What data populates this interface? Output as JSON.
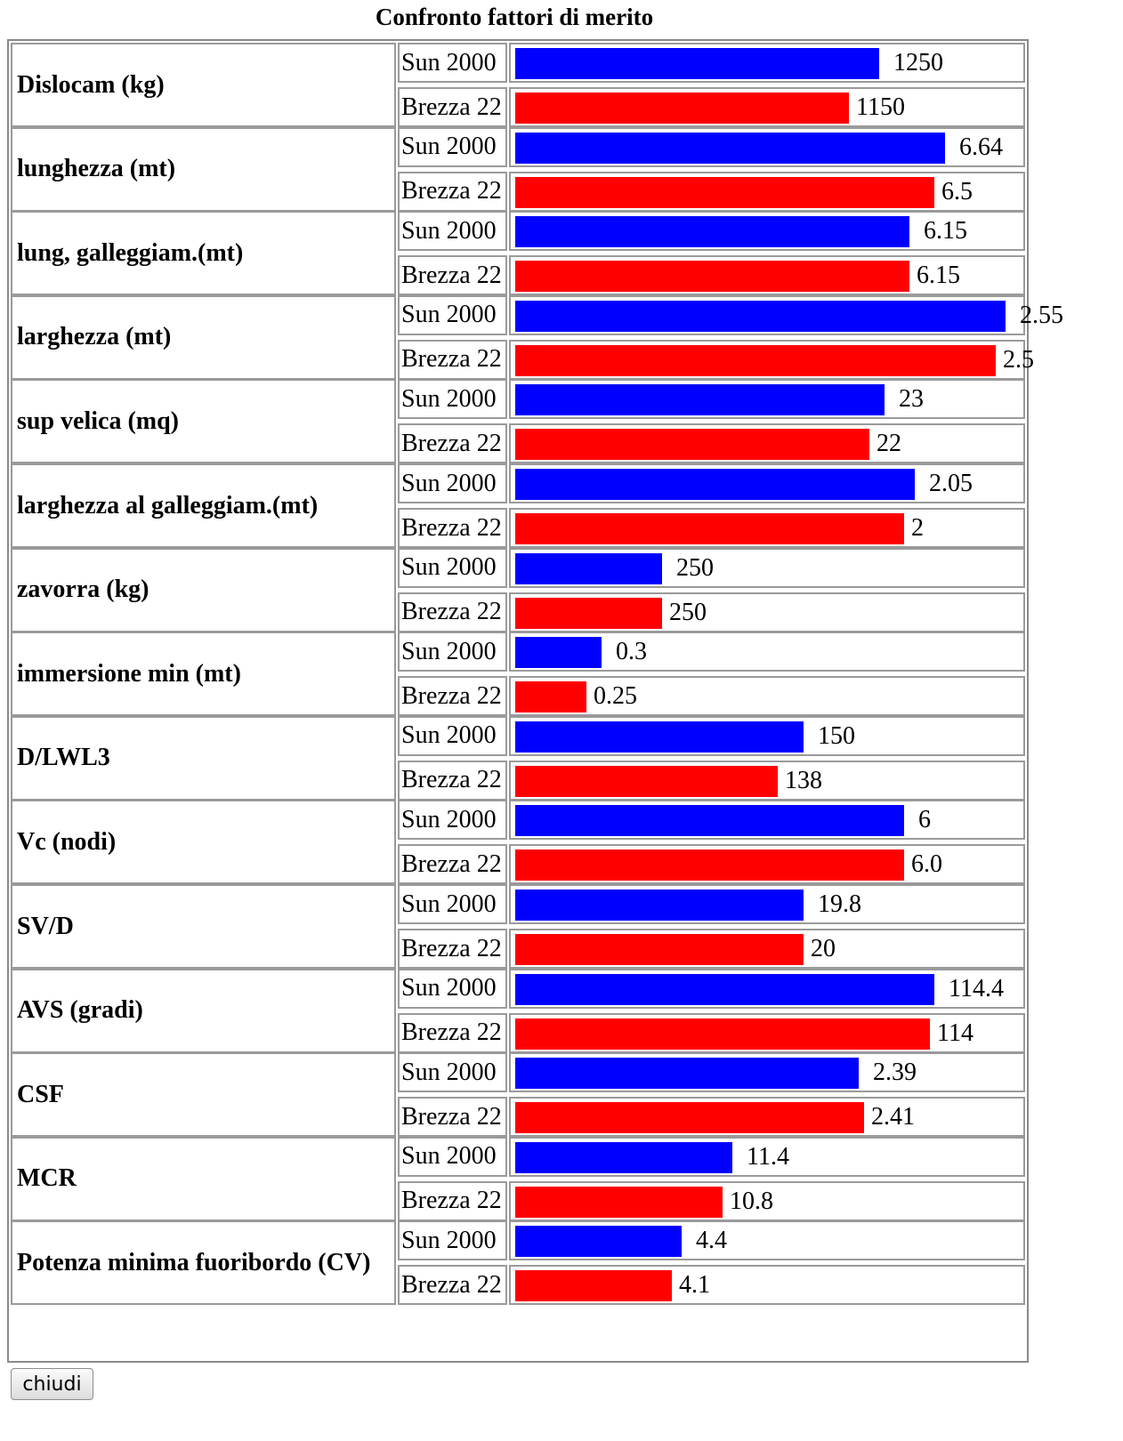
{
  "chart_data": {
    "type": "bar",
    "orientation": "horizontal",
    "title": "Confronto fattori di merito",
    "series_names": [
      "Sun 2000",
      "Brezza 22"
    ],
    "colors": {
      "Sun 2000": "#0000ff",
      "Brezza 22": "#ff0000"
    },
    "categories": [
      "Dislocam (kg)",
      "lunghezza (mt)",
      "lung, galleggiam.(mt)",
      "larghezza (mt)",
      "sup velica (mq)",
      "larghezza al galleggiam.(mt)",
      "zavorra (kg)",
      "immersione min (mt)",
      "D/LWL3",
      "Vc (nodi)",
      "SV/D",
      "AVS (gradi)",
      "CSF",
      "MCR",
      "Potenza minima fuoribordo (CV)"
    ],
    "rows": [
      {
        "metric": "Dislocam (kg)",
        "values": [
          {
            "label": "1250",
            "value": 1250,
            "fill": 0.72
          },
          {
            "label": "1150",
            "value": 1150,
            "fill": 0.66
          }
        ]
      },
      {
        "metric": "lunghezza (mt)",
        "values": [
          {
            "label": "6.64",
            "value": 6.64,
            "fill": 0.85
          },
          {
            "label": "6.5",
            "value": 6.5,
            "fill": 0.83
          }
        ]
      },
      {
        "metric": "lung, galleggiam.(mt)",
        "values": [
          {
            "label": "6.15",
            "value": 6.15,
            "fill": 0.78
          },
          {
            "label": "6.15",
            "value": 6.15,
            "fill": 0.78
          }
        ]
      },
      {
        "metric": "larghezza (mt)",
        "values": [
          {
            "label": "2.55",
            "value": 2.55,
            "fill": 0.97
          },
          {
            "label": "2.5",
            "value": 2.5,
            "fill": 0.95
          }
        ]
      },
      {
        "metric": "sup velica (mq)",
        "values": [
          {
            "label": "23",
            "value": 23,
            "fill": 0.73
          },
          {
            "label": "22",
            "value": 22,
            "fill": 0.7
          }
        ]
      },
      {
        "metric": "larghezza al galleggiam.(mt)",
        "values": [
          {
            "label": "2.05",
            "value": 2.05,
            "fill": 0.79
          },
          {
            "label": "2",
            "value": 2,
            "fill": 0.77
          }
        ]
      },
      {
        "metric": "zavorra (kg)",
        "values": [
          {
            "label": "250",
            "value": 250,
            "fill": 0.29
          },
          {
            "label": "250",
            "value": 250,
            "fill": 0.29
          }
        ]
      },
      {
        "metric": "immersione min (mt)",
        "values": [
          {
            "label": "0.3",
            "value": 0.3,
            "fill": 0.17
          },
          {
            "label": "0.25",
            "value": 0.25,
            "fill": 0.14
          }
        ]
      },
      {
        "metric": "D/LWL3",
        "values": [
          {
            "label": "150",
            "value": 150,
            "fill": 0.57
          },
          {
            "label": "138",
            "value": 138,
            "fill": 0.52
          }
        ]
      },
      {
        "metric": "Vc (nodi)",
        "values": [
          {
            "label": "6",
            "value": 6,
            "fill": 0.77
          },
          {
            "label": "6.0",
            "value": 6.0,
            "fill": 0.77
          }
        ]
      },
      {
        "metric": "SV/D",
        "values": [
          {
            "label": "19.8",
            "value": 19.8,
            "fill": 0.57
          },
          {
            "label": "20",
            "value": 20,
            "fill": 0.57
          }
        ]
      },
      {
        "metric": "AVS (gradi)",
        "values": [
          {
            "label": "114.4",
            "value": 114.4,
            "fill": 0.83
          },
          {
            "label": "114",
            "value": 114,
            "fill": 0.82
          }
        ]
      },
      {
        "metric": "CSF",
        "values": [
          {
            "label": "2.39",
            "value": 2.39,
            "fill": 0.68
          },
          {
            "label": "2.41",
            "value": 2.41,
            "fill": 0.69
          }
        ]
      },
      {
        "metric": "MCR",
        "values": [
          {
            "label": "11.4",
            "value": 11.4,
            "fill": 0.43
          },
          {
            "label": "10.8",
            "value": 10.8,
            "fill": 0.41
          }
        ]
      },
      {
        "metric": "Potenza minima fuoribordo (CV)",
        "values": [
          {
            "label": "4.4",
            "value": 4.4,
            "fill": 0.33
          },
          {
            "label": "4.1",
            "value": 4.1,
            "fill": 0.31
          }
        ]
      }
    ]
  },
  "close_button_label": "chiudi"
}
